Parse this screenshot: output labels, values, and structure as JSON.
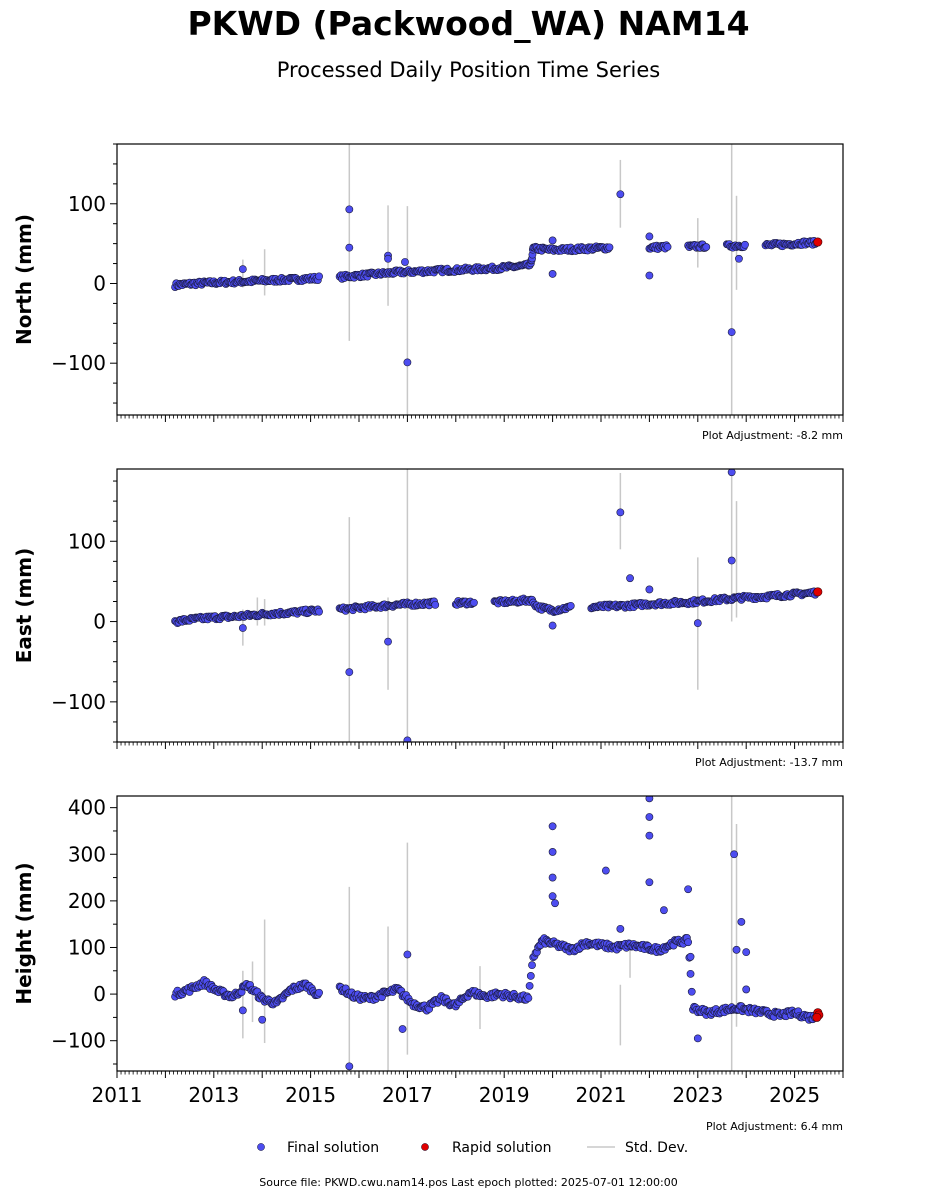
{
  "figure": {
    "title": "PKWD (Packwood_WA) NAM14",
    "subtitle": "Processed Daily Position Time Series",
    "footer": "Source file: PKWD.cwu.nam14.pos  Last epoch plotted: 2025-07-01 12:00:00",
    "legend": [
      {
        "label": "Final solution",
        "marker": "dot",
        "color": "#4d4df0"
      },
      {
        "label": "Rapid solution",
        "marker": "dot",
        "color": "#e00000"
      },
      {
        "label": "Std. Dev.",
        "marker": "line",
        "color": "#c8c8c8"
      }
    ]
  },
  "chart_data": [
    {
      "type": "scatter",
      "ylabel": "North (mm)",
      "xlim": [
        2011,
        2026
      ],
      "ylim": [
        -165,
        175
      ],
      "yticks": [
        -100,
        0,
        100
      ],
      "adjustment": "Plot Adjustment: -8.2 mm",
      "series": [
        {
          "name": "Final solution",
          "color": "#4d4df0",
          "x": [
            2012.2,
            2012.6,
            2013.0,
            2013.4,
            2013.8,
            2014.2,
            2014.6,
            2015.0,
            2015.2,
            2015.6,
            2016.0,
            2016.4,
            2016.8,
            2017.2,
            2017.6,
            2018.0,
            2018.4,
            2018.8,
            2019.2,
            2019.55,
            2019.6,
            2020.0,
            2020.4,
            2020.8,
            2021.2,
            2021.6,
            2022.0,
            2022.4,
            2022.8,
            2023.2,
            2023.6,
            2024.0,
            2024.4,
            2024.8,
            2025.2,
            2025.45
          ],
          "y": [
            -2,
            0,
            1,
            2,
            3,
            4,
            5,
            6,
            7,
            8,
            10,
            12,
            14,
            15,
            16,
            17,
            18,
            19,
            21,
            23,
            44,
            42,
            43,
            44,
            45,
            45,
            45,
            46,
            46,
            47,
            47,
            48,
            48,
            49,
            51,
            51
          ],
          "outliers_x": [
            2013.6,
            2015.8,
            2015.8,
            2016.6,
            2016.6,
            2017.0,
            2016.95,
            2020.0,
            2020.0,
            2021.4,
            2022.0,
            2022.0,
            2023.7,
            2023.85
          ],
          "outliers_y": [
            18,
            93,
            45,
            35,
            31,
            -99,
            27,
            12,
            54,
            112,
            59,
            10,
            -61,
            31
          ]
        },
        {
          "name": "Rapid solution",
          "color": "#e00000",
          "x": [
            2025.48
          ],
          "y": [
            52
          ]
        }
      ],
      "std_dev_bars": [
        [
          2013.6,
          -5,
          30
        ],
        [
          2014.05,
          -15,
          43
        ],
        [
          2015.8,
          -72,
          175
        ],
        [
          2016.6,
          -28,
          98
        ],
        [
          2017.0,
          -165,
          97
        ],
        [
          2021.4,
          70,
          155
        ],
        [
          2023.0,
          20,
          82
        ],
        [
          2023.7,
          -165,
          175
        ],
        [
          2023.8,
          -8,
          110
        ]
      ]
    },
    {
      "type": "scatter",
      "ylabel": "East (mm)",
      "xlim": [
        2011,
        2026
      ],
      "ylim": [
        -150,
        190
      ],
      "yticks": [
        -100,
        0,
        100
      ],
      "adjustment": "Plot Adjustment: -13.7 mm",
      "series": [
        {
          "name": "Final solution",
          "color": "#4d4df0",
          "x": [
            2012.2,
            2012.6,
            2013.0,
            2013.4,
            2013.8,
            2014.2,
            2014.6,
            2015.0,
            2015.2,
            2015.6,
            2016.0,
            2016.4,
            2016.8,
            2017.2,
            2017.6,
            2018.0,
            2018.4,
            2018.8,
            2019.2,
            2019.55,
            2019.7,
            2020.0,
            2020.4,
            2020.8,
            2021.2,
            2021.6,
            2022.0,
            2022.4,
            2022.8,
            2023.2,
            2023.6,
            2024.0,
            2024.4,
            2024.8,
            2025.2,
            2025.45
          ],
          "y": [
            0,
            3,
            5,
            6,
            8,
            10,
            11,
            13,
            14,
            15,
            17,
            19,
            21,
            22,
            23,
            23,
            24,
            24,
            25,
            27,
            18,
            14,
            18,
            18,
            19,
            20,
            22,
            23,
            24,
            26,
            28,
            30,
            31,
            33,
            35,
            36
          ],
          "outliers_x": [
            2013.6,
            2015.8,
            2016.6,
            2017.0,
            2020.0,
            2021.4,
            2021.6,
            2022.0,
            2023.0,
            2023.7,
            2023.7
          ],
          "outliers_y": [
            -8,
            -63,
            -25,
            -148,
            -5,
            136,
            54,
            40,
            -2,
            186,
            76
          ],
          "outliers_note": ""
        },
        {
          "name": "Rapid solution",
          "color": "#e00000",
          "x": [
            2025.48
          ],
          "y": [
            37
          ]
        }
      ],
      "std_dev_bars": [
        [
          2013.6,
          -30,
          15
        ],
        [
          2013.9,
          -5,
          30
        ],
        [
          2014.05,
          -5,
          28
        ],
        [
          2015.8,
          -150,
          130
        ],
        [
          2016.6,
          -85,
          30
        ],
        [
          2017.0,
          -150,
          190
        ],
        [
          2021.4,
          90,
          185
        ],
        [
          2023.0,
          -85,
          80
        ],
        [
          2023.7,
          0,
          190
        ],
        [
          2023.8,
          5,
          150
        ]
      ]
    },
    {
      "type": "scatter",
      "ylabel": "Height (mm)",
      "xlim": [
        2011,
        2026
      ],
      "ylim": [
        -165,
        425
      ],
      "yticks": [
        -100,
        0,
        100,
        200,
        300,
        400
      ],
      "xticks": [
        2011,
        2013,
        2015,
        2017,
        2019,
        2021,
        2023,
        2025
      ],
      "adjustment": "Plot Adjustment: 6.4 mm",
      "series": [
        {
          "name": "Final solution",
          "color": "#4d4df0",
          "x": [
            2012.2,
            2012.5,
            2012.8,
            2013.1,
            2013.4,
            2013.7,
            2014.0,
            2014.3,
            2014.6,
            2014.9,
            2015.2,
            2015.6,
            2015.9,
            2016.2,
            2016.5,
            2016.8,
            2017.1,
            2017.4,
            2017.7,
            2018.0,
            2018.3,
            2018.6,
            2018.9,
            2019.2,
            2019.5,
            2019.6,
            2019.8,
            2020.1,
            2020.4,
            2020.7,
            2021.0,
            2021.3,
            2021.6,
            2021.9,
            2022.2,
            2022.5,
            2022.8,
            2022.9,
            2023.2,
            2023.5,
            2023.8,
            2024.1,
            2024.4,
            2024.7,
            2025.0,
            2025.3,
            2025.45
          ],
          "y": [
            0,
            10,
            25,
            5,
            -5,
            20,
            -10,
            -20,
            10,
            20,
            -5,
            15,
            -5,
            -10,
            0,
            10,
            -20,
            -30,
            -10,
            -25,
            5,
            -5,
            0,
            -5,
            -10,
            80,
            115,
            105,
            95,
            110,
            105,
            100,
            105,
            100,
            95,
            110,
            115,
            -30,
            -40,
            -35,
            -30,
            -35,
            -40,
            -45,
            -40,
            -50,
            -50
          ],
          "outliers_x": [
            2013.6,
            2014.0,
            2015.8,
            2016.9,
            2017.0,
            2020.0,
            2020.0,
            2020.0,
            2020.0,
            2020.05,
            2021.1,
            2021.4,
            2022.0,
            2022.0,
            2022.0,
            2022.0,
            2022.3,
            2022.8,
            2022.85,
            2023.0,
            2023.75,
            2023.8,
            2023.9,
            2024.0,
            2024.0
          ],
          "outliers_y": [
            -35,
            -55,
            -155,
            -75,
            85,
            360,
            305,
            250,
            210,
            195,
            265,
            140,
            420,
            380,
            340,
            240,
            180,
            225,
            80,
            -95,
            300,
            95,
            155,
            90,
            10
          ],
          "outliers_note": ""
        },
        {
          "name": "Rapid solution",
          "color": "#e00000",
          "x": [
            2025.48,
            2025.5,
            2025.46
          ],
          "y": [
            -40,
            -45,
            -50
          ]
        }
      ],
      "std_dev_bars": [
        [
          2013.6,
          -95,
          50
        ],
        [
          2013.8,
          -60,
          70
        ],
        [
          2014.05,
          -105,
          160
        ],
        [
          2015.8,
          -165,
          230
        ],
        [
          2016.6,
          -165,
          145
        ],
        [
          2017.0,
          -130,
          325
        ],
        [
          2018.5,
          -75,
          60
        ],
        [
          2021.4,
          -110,
          20
        ],
        [
          2021.6,
          35,
          110
        ],
        [
          2023.7,
          -165,
          425
        ],
        [
          2023.8,
          -70,
          365
        ]
      ]
    }
  ]
}
